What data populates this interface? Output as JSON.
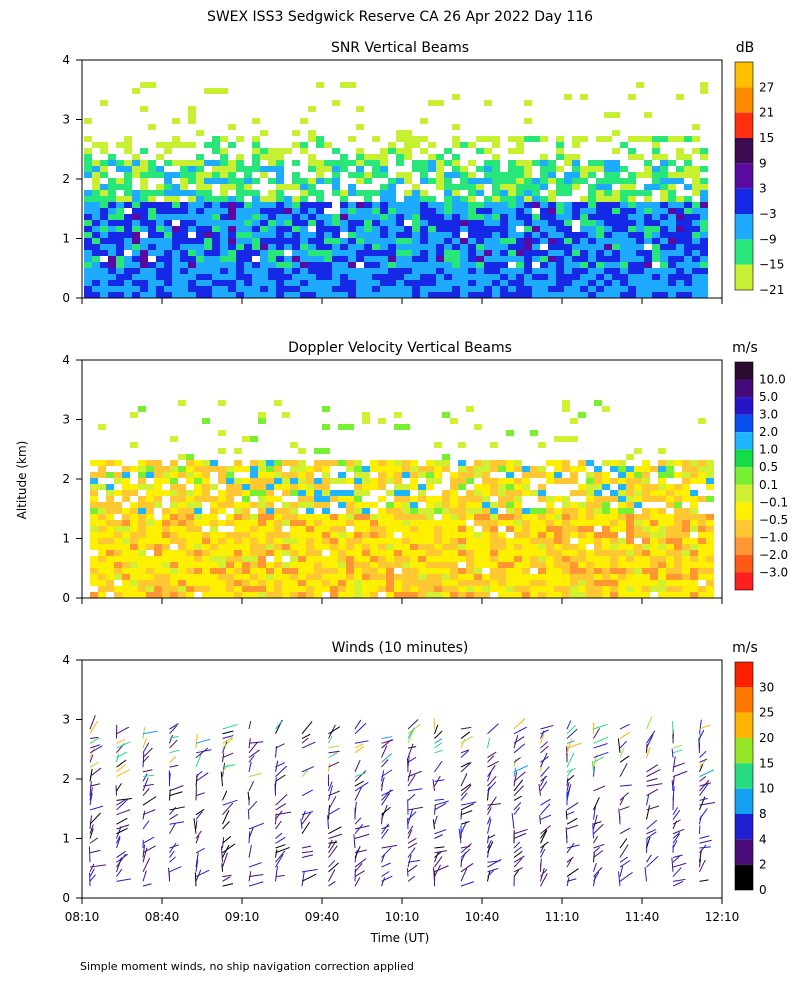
{
  "title": "SWEX ISS3 Sedgwick Reserve CA  26 Apr 2022 Day 116",
  "ylabel": "Altitude (km)",
  "xlabel": "Time (UT)",
  "footnote": "Simple moment winds, no ship navigation correction applied",
  "x_ticks": [
    "08:10",
    "08:40",
    "09:10",
    "09:40",
    "10:10",
    "10:40",
    "11:10",
    "11:40",
    "12:10"
  ],
  "y_ticks": [
    "0",
    "1",
    "2",
    "3",
    "4"
  ],
  "chart_data": [
    {
      "type": "heatmap",
      "title": "SNR Vertical Beams",
      "units": "dB",
      "colorbar_labels": [
        "27",
        "21",
        "15",
        "9",
        "3",
        "−3",
        "−9",
        "−15",
        "−21"
      ],
      "colorbar_colors": [
        "#ffc000",
        "#ff8c00",
        "#ff3010",
        "#3c0a4e",
        "#5a0aa0",
        "#1428e6",
        "#1eaaff",
        "#28e67a",
        "#c8f032"
      ],
      "x_range": [
        "08:10",
        "12:10"
      ],
      "ylim": [
        0,
        4
      ]
    },
    {
      "type": "heatmap",
      "title": "Doppler Velocity Vertical Beams",
      "units": "m/s",
      "colorbar_labels": [
        "10.0",
        "5.0",
        "3.0",
        "2.0",
        "1.0",
        "0.5",
        "0.1",
        "−0.1",
        "−0.5",
        "−1.0",
        "−2.0",
        "−3.0"
      ],
      "colorbar_colors": [
        "#2a0a2e",
        "#460a78",
        "#2814c8",
        "#0a50f0",
        "#1eb4ff",
        "#14dc46",
        "#78f032",
        "#d2f032",
        "#fff000",
        "#ffc832",
        "#ff9632",
        "#ff5a14",
        "#ff1e1e"
      ],
      "x_range": [
        "08:10",
        "12:10"
      ],
      "ylim": [
        0,
        4
      ]
    },
    {
      "type": "scatter",
      "title": "Winds (10 minutes)",
      "units": "m/s",
      "colorbar_labels": [
        "30",
        "25",
        "20",
        "15",
        "10",
        "8",
        "4",
        "2",
        "0"
      ],
      "colorbar_colors": [
        "#ff2000",
        "#ff7800",
        "#ffb400",
        "#96e628",
        "#28dc82",
        "#14a0f0",
        "#1e1ed2",
        "#4a0a78",
        "#000000"
      ],
      "x_range": [
        "08:10",
        "12:10"
      ],
      "ylim": [
        0,
        4
      ]
    }
  ]
}
